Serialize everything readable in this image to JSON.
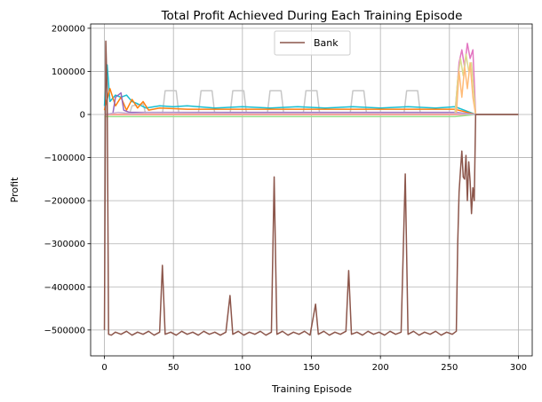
{
  "chart_data": {
    "type": "line",
    "title": "Total Profit Achieved During Each Training Episode",
    "xlabel": "Training Episode",
    "ylabel": "Profit",
    "xlim": [
      -10,
      310
    ],
    "ylim": [
      -560000,
      210000
    ],
    "xticks": [
      0,
      50,
      100,
      150,
      200,
      250,
      300
    ],
    "yticks": [
      200000,
      100000,
      0,
      -100000,
      -200000,
      -300000,
      -400000,
      -500000
    ],
    "grid": true,
    "legend": {
      "position": "upper-center",
      "entries": [
        "Bank"
      ]
    },
    "highlighted_series": {
      "name": "Bank",
      "color": "#8c564b",
      "points": [
        [
          0,
          -500000
        ],
        [
          1,
          170000
        ],
        [
          2,
          50000
        ],
        [
          3,
          -510000
        ],
        [
          5,
          -512000
        ],
        [
          8,
          -505000
        ],
        [
          12,
          -510000
        ],
        [
          16,
          -503000
        ],
        [
          20,
          -512000
        ],
        [
          24,
          -505000
        ],
        [
          28,
          -510000
        ],
        [
          32,
          -503000
        ],
        [
          36,
          -512000
        ],
        [
          40,
          -505000
        ],
        [
          42,
          -350000
        ],
        [
          44,
          -510000
        ],
        [
          48,
          -505000
        ],
        [
          52,
          -512000
        ],
        [
          56,
          -503000
        ],
        [
          60,
          -510000
        ],
        [
          64,
          -505000
        ],
        [
          68,
          -512000
        ],
        [
          72,
          -503000
        ],
        [
          76,
          -510000
        ],
        [
          80,
          -505000
        ],
        [
          84,
          -512000
        ],
        [
          88,
          -505000
        ],
        [
          91,
          -420000
        ],
        [
          93,
          -510000
        ],
        [
          97,
          -503000
        ],
        [
          101,
          -512000
        ],
        [
          105,
          -505000
        ],
        [
          109,
          -510000
        ],
        [
          113,
          -503000
        ],
        [
          117,
          -512000
        ],
        [
          121,
          -505000
        ],
        [
          123,
          -145000
        ],
        [
          125,
          -510000
        ],
        [
          129,
          -503000
        ],
        [
          133,
          -512000
        ],
        [
          137,
          -505000
        ],
        [
          141,
          -510000
        ],
        [
          145,
          -503000
        ],
        [
          149,
          -512000
        ],
        [
          153,
          -440000
        ],
        [
          155,
          -510000
        ],
        [
          159,
          -503000
        ],
        [
          163,
          -512000
        ],
        [
          167,
          -505000
        ],
        [
          171,
          -510000
        ],
        [
          175,
          -503000
        ],
        [
          177,
          -362000
        ],
        [
          179,
          -510000
        ],
        [
          183,
          -505000
        ],
        [
          187,
          -512000
        ],
        [
          191,
          -503000
        ],
        [
          195,
          -510000
        ],
        [
          199,
          -505000
        ],
        [
          203,
          -512000
        ],
        [
          207,
          -503000
        ],
        [
          211,
          -510000
        ],
        [
          215,
          -505000
        ],
        [
          218,
          -138000
        ],
        [
          220,
          -510000
        ],
        [
          224,
          -503000
        ],
        [
          228,
          -512000
        ],
        [
          232,
          -505000
        ],
        [
          236,
          -510000
        ],
        [
          240,
          -503000
        ],
        [
          244,
          -512000
        ],
        [
          248,
          -505000
        ],
        [
          252,
          -510000
        ],
        [
          255,
          -503000
        ],
        [
          256,
          -300000
        ],
        [
          257,
          -180000
        ],
        [
          258,
          -130000
        ],
        [
          259,
          -85000
        ],
        [
          260,
          -145000
        ],
        [
          261,
          -150000
        ],
        [
          262,
          -95000
        ],
        [
          263,
          -200000
        ],
        [
          264,
          -110000
        ],
        [
          265,
          -155000
        ],
        [
          266,
          -230000
        ],
        [
          267,
          -170000
        ],
        [
          268,
          -200000
        ],
        [
          269,
          0
        ],
        [
          275,
          0
        ],
        [
          300,
          0
        ]
      ]
    },
    "background_series": [
      {
        "color": "#c7c7c7",
        "points": [
          [
            0,
            0
          ],
          [
            18,
            0
          ],
          [
            20,
            20000
          ],
          [
            28,
            25000
          ],
          [
            30,
            0
          ],
          [
            42,
            0
          ],
          [
            44,
            55000
          ],
          [
            52,
            55000
          ],
          [
            54,
            0
          ],
          [
            68,
            0
          ],
          [
            70,
            55000
          ],
          [
            78,
            55000
          ],
          [
            80,
            0
          ],
          [
            91,
            0
          ],
          [
            93,
            55000
          ],
          [
            101,
            55000
          ],
          [
            103,
            0
          ],
          [
            118,
            0
          ],
          [
            120,
            55000
          ],
          [
            128,
            55000
          ],
          [
            130,
            0
          ],
          [
            144,
            0
          ],
          [
            146,
            55000
          ],
          [
            154,
            55000
          ],
          [
            156,
            0
          ],
          [
            178,
            0
          ],
          [
            180,
            55000
          ],
          [
            188,
            55000
          ],
          [
            190,
            0
          ],
          [
            217,
            0
          ],
          [
            219,
            55000
          ],
          [
            227,
            55000
          ],
          [
            229,
            0
          ],
          [
            254,
            0
          ],
          [
            256,
            0
          ],
          [
            269,
            0
          ],
          [
            300,
            0
          ]
        ]
      },
      {
        "color": "#17becf",
        "points": [
          [
            0,
            20000
          ],
          [
            2,
            115000
          ],
          [
            4,
            30000
          ],
          [
            8,
            45000
          ],
          [
            12,
            40000
          ],
          [
            16,
            45000
          ],
          [
            20,
            30000
          ],
          [
            24,
            25000
          ],
          [
            30,
            15000
          ],
          [
            40,
            20000
          ],
          [
            50,
            18000
          ],
          [
            60,
            20000
          ],
          [
            80,
            15000
          ],
          [
            100,
            18000
          ],
          [
            120,
            15000
          ],
          [
            140,
            18000
          ],
          [
            160,
            15000
          ],
          [
            180,
            18000
          ],
          [
            200,
            15000
          ],
          [
            220,
            18000
          ],
          [
            240,
            15000
          ],
          [
            254,
            18000
          ],
          [
            269,
            0
          ],
          [
            300,
            0
          ]
        ]
      },
      {
        "color": "#ff7f0e",
        "points": [
          [
            0,
            10000
          ],
          [
            4,
            60000
          ],
          [
            8,
            20000
          ],
          [
            12,
            40000
          ],
          [
            16,
            10000
          ],
          [
            20,
            35000
          ],
          [
            24,
            15000
          ],
          [
            28,
            30000
          ],
          [
            32,
            10000
          ],
          [
            40,
            15000
          ],
          [
            60,
            12000
          ],
          [
            100,
            12000
          ],
          [
            150,
            12000
          ],
          [
            200,
            12000
          ],
          [
            254,
            12000
          ],
          [
            269,
            0
          ],
          [
            300,
            0
          ]
        ]
      },
      {
        "color": "#9467bd",
        "points": [
          [
            0,
            0
          ],
          [
            6,
            0
          ],
          [
            8,
            40000
          ],
          [
            12,
            50000
          ],
          [
            14,
            10000
          ],
          [
            18,
            5000
          ],
          [
            30,
            5000
          ],
          [
            60,
            5000
          ],
          [
            120,
            5000
          ],
          [
            180,
            5000
          ],
          [
            254,
            5000
          ],
          [
            269,
            0
          ],
          [
            300,
            0
          ]
        ]
      },
      {
        "color": "#e377c2",
        "points": [
          [
            0,
            0
          ],
          [
            254,
            0
          ],
          [
            257,
            120000
          ],
          [
            259,
            150000
          ],
          [
            261,
            110000
          ],
          [
            263,
            165000
          ],
          [
            265,
            130000
          ],
          [
            267,
            150000
          ],
          [
            269,
            0
          ],
          [
            300,
            0
          ]
        ]
      },
      {
        "color": "#dbdb8d",
        "points": [
          [
            0,
            0
          ],
          [
            254,
            0
          ],
          [
            256,
            80000
          ],
          [
            258,
            130000
          ],
          [
            260,
            90000
          ],
          [
            262,
            140000
          ],
          [
            264,
            100000
          ],
          [
            266,
            120000
          ],
          [
            269,
            0
          ],
          [
            300,
            0
          ]
        ]
      },
      {
        "color": "#ffbb78",
        "points": [
          [
            0,
            0
          ],
          [
            255,
            0
          ],
          [
            257,
            100000
          ],
          [
            259,
            40000
          ],
          [
            261,
            110000
          ],
          [
            263,
            60000
          ],
          [
            265,
            120000
          ],
          [
            267,
            40000
          ],
          [
            269,
            0
          ],
          [
            300,
            0
          ]
        ]
      },
      {
        "color": "#ff9896",
        "points": [
          [
            0,
            0
          ],
          [
            254,
            0
          ],
          [
            269,
            0
          ],
          [
            300,
            0
          ]
        ]
      },
      {
        "color": "#98df8a",
        "points": [
          [
            0,
            -5000
          ],
          [
            254,
            -5000
          ],
          [
            269,
            0
          ],
          [
            300,
            0
          ]
        ]
      },
      {
        "color": "#c5b0d5",
        "points": [
          [
            0,
            0
          ],
          [
            10,
            5000
          ],
          [
            20,
            2000
          ],
          [
            30,
            4000
          ],
          [
            100,
            3000
          ],
          [
            200,
            3000
          ],
          [
            254,
            3000
          ],
          [
            269,
            0
          ],
          [
            300,
            0
          ]
        ]
      }
    ]
  }
}
